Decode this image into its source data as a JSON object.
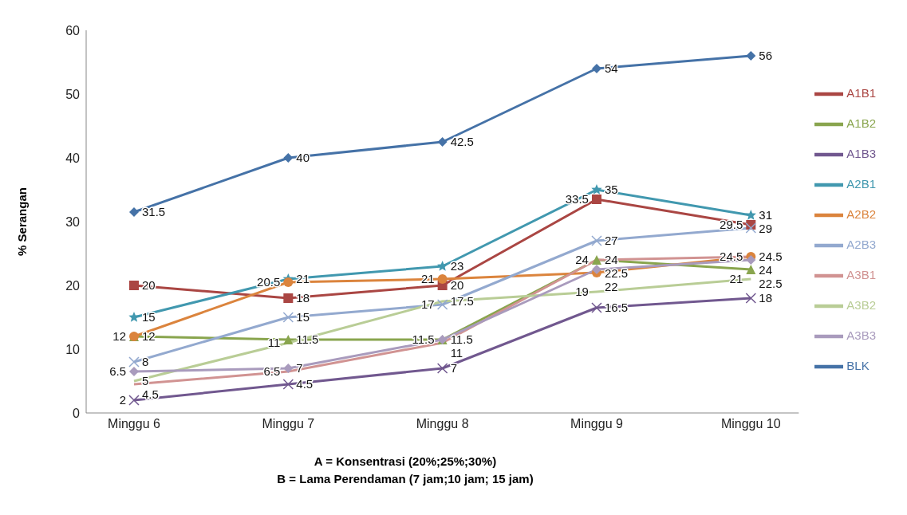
{
  "chart_data": {
    "type": "line",
    "xlabel": "A = Konsentrasi  (20%;25%;30%)\nB = Lama Perendaman (7 jam;10 jam; 15 jam)",
    "ylabel": "% Serangan",
    "categories": [
      "Minggu 6",
      "Minggu 7",
      "Minggu 8",
      "Minggu 9",
      "Minggu 10"
    ],
    "series": [
      {
        "name": "BLK",
        "color": "#4572a7",
        "marker": "diamond",
        "values": [
          31.5,
          40,
          42.5,
          54,
          56
        ]
      },
      {
        "name": "A1B1",
        "color": "#aa4643",
        "marker": "square",
        "values": [
          20,
          18,
          20,
          33.5,
          29.5
        ]
      },
      {
        "name": "A1B2",
        "color": "#89a54e",
        "marker": "triangle",
        "values": [
          12,
          11.5,
          11.5,
          24,
          22.5
        ]
      },
      {
        "name": "A1B3",
        "color": "#71588f",
        "marker": "cross",
        "values": [
          2,
          4.5,
          7,
          16.5,
          18
        ]
      },
      {
        "name": "A2B1",
        "color": "#4198af",
        "marker": "star",
        "values": [
          15,
          21,
          23,
          35,
          31
        ]
      },
      {
        "name": "A2B2",
        "color": "#db843d",
        "marker": "circle",
        "values": [
          12,
          20.5,
          21,
          22,
          24.5
        ]
      },
      {
        "name": "A2B3",
        "color": "#93a9cf",
        "marker": "cross",
        "values": [
          8,
          15,
          17,
          27,
          29
        ]
      },
      {
        "name": "A3B1",
        "color": "#d19392",
        "marker": "none",
        "values": [
          4.5,
          6.5,
          11,
          24,
          24.5
        ]
      },
      {
        "name": "A3B2",
        "color": "#b9cd96",
        "marker": "none",
        "values": [
          5,
          11,
          17.5,
          19,
          21
        ]
      },
      {
        "name": "A3B3",
        "color": "#a99bbd",
        "marker": "diamond",
        "values": [
          6.5,
          7,
          11.5,
          22.5,
          24
        ]
      }
    ],
    "ylim": [
      0,
      60
    ],
    "yticks": [
      0,
      10,
      20,
      30,
      40,
      50,
      60
    ],
    "grid": false,
    "legend": "right",
    "data_labels": true
  }
}
